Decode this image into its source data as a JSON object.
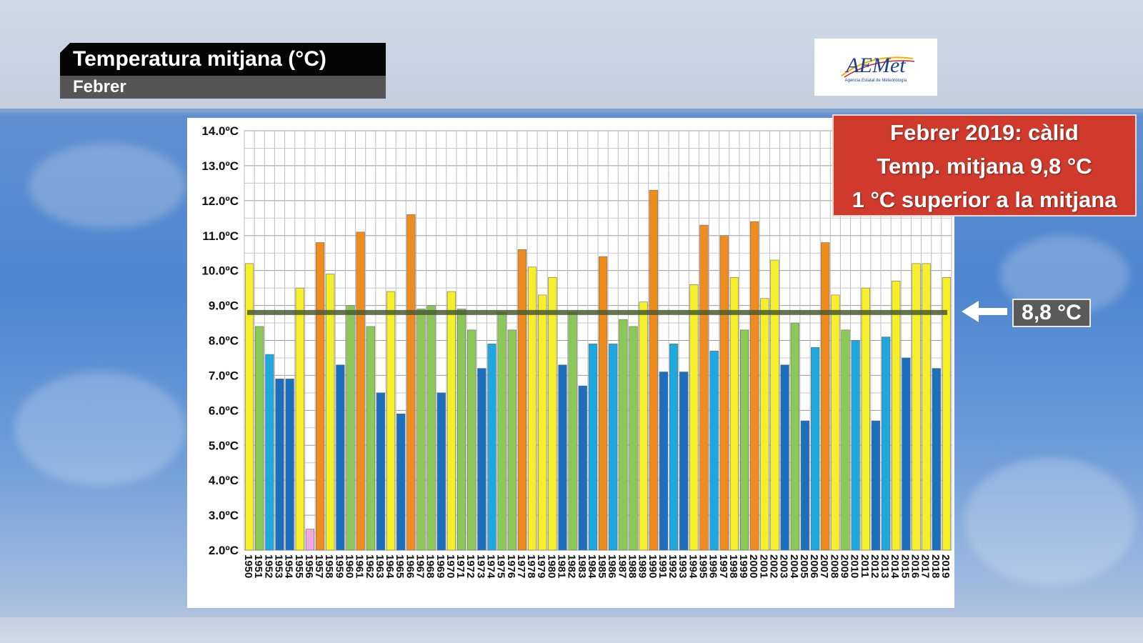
{
  "header": {
    "title": "Temperatura mitjana (°C)",
    "subtitle": "Febrer"
  },
  "logo": {
    "text": "AEMet",
    "subtext": "Agencia Estatal de Meteorología"
  },
  "info_box": {
    "line1": "Febrer 2019: càlid",
    "line2": "Temp. mitjana 9,8 °C",
    "line3": "1 °C superior a la mitjana"
  },
  "average_label": "8,8 °C",
  "colors": {
    "very_cold": "#f0a8e0",
    "cold": "#1a6fbf",
    "cool": "#1ea8e0",
    "normal": "#8cc858",
    "warm": "#f5f02a",
    "very_warm": "#f08c1e",
    "average_line": "#4a5a30",
    "info_red": "#d03a2c"
  },
  "chart_data": {
    "type": "bar",
    "ylim": [
      2.0,
      14.0
    ],
    "yticks": [
      "14.0ºC",
      "13.0ºC",
      "12.0ºC",
      "11.0ºC",
      "10.0ºC",
      "9.0ºC",
      "8.0ºC",
      "7.0ºC",
      "6.0ºC",
      "5.0ºC",
      "4.0ºC",
      "3.0ºC",
      "2.0ºC"
    ],
    "average": 8.8,
    "categories": [
      "1950",
      "1951",
      "1952",
      "1953",
      "1954",
      "1955",
      "1956",
      "1957",
      "1958",
      "1959",
      "1960",
      "1961",
      "1962",
      "1963",
      "1964",
      "1965",
      "1966",
      "1967",
      "1968",
      "1969",
      "1970",
      "1971",
      "1972",
      "1973",
      "1974",
      "1975",
      "1976",
      "1977",
      "1978",
      "1979",
      "1980",
      "1981",
      "1982",
      "1983",
      "1984",
      "1985",
      "1986",
      "1987",
      "1988",
      "1989",
      "1990",
      "1991",
      "1992",
      "1993",
      "1994",
      "1995",
      "1996",
      "1997",
      "1998",
      "1999",
      "2000",
      "2001",
      "2002",
      "2003",
      "2004",
      "2005",
      "2006",
      "2007",
      "2008",
      "2009",
      "2010",
      "2011",
      "2012",
      "2013",
      "2014",
      "2015",
      "2016",
      "2017",
      "2018",
      "2019"
    ],
    "values": [
      10.2,
      8.4,
      7.6,
      6.9,
      6.9,
      9.5,
      2.6,
      10.8,
      9.9,
      7.3,
      9.0,
      11.1,
      8.4,
      6.5,
      9.4,
      5.9,
      11.6,
      8.9,
      9.0,
      6.5,
      9.4,
      8.9,
      8.3,
      7.2,
      7.9,
      8.8,
      8.3,
      10.6,
      10.1,
      9.3,
      9.8,
      7.3,
      8.8,
      6.7,
      7.9,
      10.4,
      7.9,
      8.6,
      8.4,
      9.1,
      12.3,
      7.1,
      7.9,
      7.1,
      9.6,
      11.3,
      7.7,
      11.0,
      9.8,
      8.3,
      11.4,
      9.2,
      10.3,
      7.3,
      8.5,
      5.7,
      7.8,
      10.8,
      9.3,
      8.3,
      8.0,
      9.5,
      5.7,
      8.1,
      9.7,
      7.5,
      10.2,
      10.2,
      7.2,
      9.8
    ],
    "classes": [
      "warm",
      "normal",
      "cool",
      "cold",
      "cold",
      "warm",
      "very_cold",
      "very_warm",
      "warm",
      "cold",
      "normal",
      "very_warm",
      "normal",
      "cold",
      "warm",
      "cold",
      "very_warm",
      "normal",
      "normal",
      "cold",
      "warm",
      "normal",
      "normal",
      "cold",
      "cool",
      "normal",
      "normal",
      "very_warm",
      "warm",
      "warm",
      "warm",
      "cold",
      "normal",
      "cold",
      "cool",
      "very_warm",
      "cool",
      "normal",
      "normal",
      "warm",
      "very_warm",
      "cold",
      "cool",
      "cold",
      "warm",
      "very_warm",
      "cool",
      "very_warm",
      "warm",
      "normal",
      "very_warm",
      "warm",
      "warm",
      "cold",
      "normal",
      "cold",
      "cool",
      "very_warm",
      "warm",
      "normal",
      "cool",
      "warm",
      "cold",
      "cool",
      "warm",
      "cold",
      "warm",
      "warm",
      "cold",
      "warm"
    ]
  }
}
